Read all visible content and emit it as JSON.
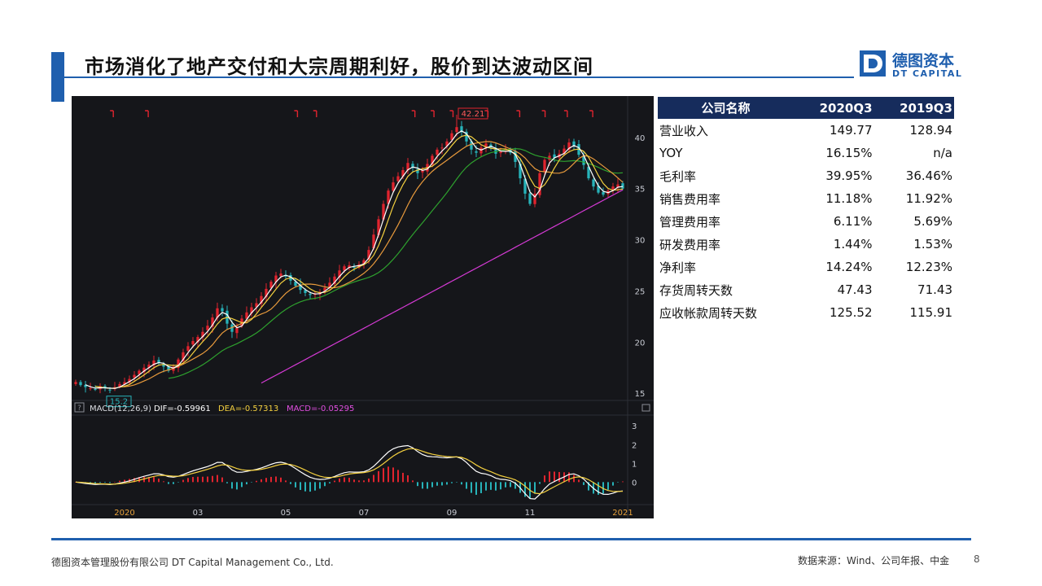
{
  "header": {
    "title": "市场消化了地产交付和大宗周期利好，股价到达波动区间",
    "logo_text_cn": "德图资本",
    "logo_text_en": "DT CAPITAL",
    "logo_mark": "D"
  },
  "chart_data": {
    "type": "candlestick",
    "xlabels": [
      {
        "label": "2020",
        "idx": 10
      },
      {
        "label": "03",
        "idx": 25
      },
      {
        "label": "05",
        "idx": 43
      },
      {
        "label": "07",
        "idx": 59
      },
      {
        "label": "09",
        "idx": 77
      },
      {
        "label": "11",
        "idx": 93
      },
      {
        "label": "2021",
        "idx": 112
      }
    ],
    "y_ticks": [
      15,
      20,
      25,
      30,
      35,
      40
    ],
    "ylim": [
      14.3,
      43.4
    ],
    "macd_ticks": [
      3,
      2,
      1,
      0
    ],
    "macd_lim": [
      -1.2,
      3.4
    ],
    "max_label": "42.21",
    "min_label": "15.2",
    "macd_legend": {
      "name": "MACD(12,26,9)",
      "dif": "DIF=-0.59961",
      "dea": "DEA=-0.57313",
      "macd": "MACD=-0.05295"
    },
    "closes": [
      16.1,
      15.8,
      15.6,
      15.5,
      15.4,
      15.7,
      15.5,
      15.3,
      15.6,
      15.9,
      16.1,
      16.4,
      16.8,
      17.2,
      17.5,
      17.8,
      18.2,
      18.0,
      17.6,
      17.2,
      17.6,
      18.3,
      19.0,
      19.6,
      20.1,
      20.5,
      21.0,
      21.6,
      22.4,
      23.3,
      23.0,
      21.8,
      21.0,
      21.4,
      22.3,
      22.9,
      23.4,
      23.8,
      24.5,
      25.2,
      25.9,
      26.5,
      26.7,
      26.4,
      26.0,
      25.5,
      25.1,
      24.8,
      24.6,
      24.7,
      24.9,
      25.3,
      25.8,
      26.4,
      27.0,
      27.4,
      27.5,
      27.3,
      27.6,
      28.0,
      29.0,
      30.5,
      32.0,
      33.5,
      34.8,
      35.6,
      36.2,
      36.8,
      37.5,
      37.0,
      36.5,
      36.8,
      37.4,
      38.2,
      38.8,
      39.0,
      39.6,
      40.4,
      41.0,
      40.5,
      39.6,
      38.8,
      38.5,
      39.0,
      39.4,
      39.0,
      38.4,
      38.6,
      38.9,
      38.5,
      37.6,
      36.0,
      34.5,
      33.5,
      34.5,
      36.5,
      37.8,
      38.2,
      38.0,
      38.4,
      38.9,
      39.5,
      39.2,
      38.3,
      37.3,
      36.0,
      35.2,
      34.6,
      34.4,
      34.8,
      35.2,
      35.4,
      35.0
    ],
    "ma_colors": {
      "ma5": "#ffffff",
      "ma10": "#f4d03f",
      "ma20": "#e89a3c",
      "ma60": "#2ea12e",
      "ma120": "#d63ad6"
    },
    "colors": {
      "up": "#e0242e",
      "down": "#27b3b9",
      "bg": "#15161a"
    }
  },
  "table": {
    "headers": [
      "公司名称",
      "2020Q3",
      "2019Q3"
    ],
    "rows": [
      [
        "营业收入",
        "149.77",
        "128.94"
      ],
      [
        "YOY",
        "16.15%",
        "n/a"
      ],
      [
        "毛利率",
        "39.95%",
        "36.46%"
      ],
      [
        "销售费用率",
        "11.18%",
        "11.92%"
      ],
      [
        "管理费用率",
        "6.11%",
        "5.69%"
      ],
      [
        "研发费用率",
        "1.44%",
        "1.53%"
      ],
      [
        "净利率",
        "14.24%",
        "12.23%"
      ],
      [
        "存货周转天数",
        "47.43",
        "71.43"
      ],
      [
        "应收帐款周转天数",
        "125.52",
        "115.91"
      ]
    ]
  },
  "footer": {
    "company": "德图资本管理股份有限公司  DT Capital Management  Co., Ltd.",
    "source": "数据来源：Wind、公司年报、中金",
    "page": "8"
  }
}
